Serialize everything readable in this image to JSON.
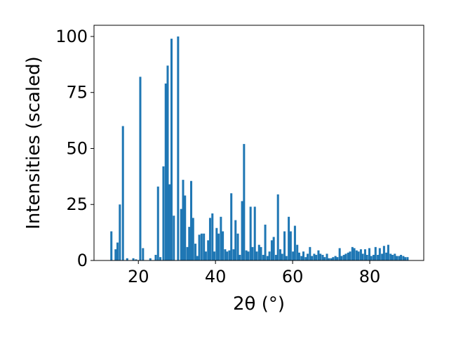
{
  "chart_data": {
    "type": "bar",
    "title": "",
    "xlabel": "2θ (°)",
    "ylabel": "Intensities (scaled)",
    "xlim": [
      8.5,
      94.0
    ],
    "ylim": [
      0,
      105
    ],
    "xticks": [
      20,
      40,
      60,
      80
    ],
    "yticks": [
      0,
      25,
      50,
      75,
      100
    ],
    "grid": false,
    "bar_width": 0.55,
    "color": "#1f77b4",
    "series": [
      {
        "x": [
          13.0,
          14.1,
          14.6,
          15.2,
          16.0,
          17.1,
          18.7,
          19.4,
          20.5,
          21.2,
          23.1,
          24.5,
          25.1,
          25.7,
          26.5,
          27.1,
          27.6,
          28.1,
          28.6,
          29.2,
          30.3,
          31.1,
          31.6,
          32.1,
          32.7,
          33.2,
          33.7,
          34.2,
          34.8,
          35.3,
          35.8,
          36.4,
          37.0,
          37.5,
          38.1,
          38.6,
          39.2,
          39.7,
          40.3,
          40.8,
          41.4,
          41.9,
          42.5,
          43.0,
          43.6,
          44.1,
          44.7,
          45.2,
          45.8,
          46.3,
          46.9,
          47.4,
          48.0,
          48.5,
          49.1,
          49.6,
          50.2,
          50.7,
          51.3,
          51.8,
          52.4,
          52.9,
          53.5,
          54.0,
          54.6,
          55.1,
          55.7,
          56.2,
          56.8,
          57.3,
          57.9,
          58.4,
          59.0,
          59.5,
          60.1,
          60.6,
          61.2,
          61.7,
          62.3,
          62.8,
          63.4,
          63.9,
          64.5,
          65.0,
          65.6,
          66.1,
          66.7,
          67.2,
          67.8,
          68.3,
          68.9,
          69.4,
          70.0,
          70.5,
          71.1,
          71.6,
          72.2,
          72.7,
          73.3,
          73.8,
          74.4,
          74.9,
          75.5,
          76.0,
          76.6,
          77.1,
          77.7,
          78.2,
          78.8,
          79.3,
          79.9,
          80.4,
          81.0,
          81.5,
          82.1,
          82.6,
          83.2,
          83.7,
          84.3,
          84.8,
          85.4,
          85.9,
          86.5,
          87.0,
          87.6,
          88.1,
          88.7,
          89.2,
          89.8
        ],
        "values": [
          13,
          5,
          8,
          25,
          60,
          1,
          1,
          0.5,
          82,
          5.5,
          1,
          2.5,
          33,
          1.5,
          42,
          79,
          87,
          34,
          99,
          20,
          100,
          23,
          36,
          29,
          6,
          15,
          35.5,
          19,
          7.5,
          2,
          11.5,
          12,
          12,
          4,
          9,
          19,
          21,
          4,
          14.5,
          12,
          19.5,
          13,
          5,
          4,
          4.5,
          30,
          5,
          18,
          12,
          2.5,
          26.5,
          52,
          4.5,
          4,
          24,
          6,
          24,
          4,
          7,
          6,
          2.5,
          16,
          2,
          4,
          9,
          10.5,
          2.5,
          29.5,
          5,
          3,
          13,
          2,
          19.5,
          13,
          4,
          15.5,
          7,
          3.5,
          2,
          4,
          1.5,
          3,
          6,
          2,
          3,
          2.5,
          4.5,
          3,
          2.5,
          1.5,
          3,
          1,
          1,
          1.5,
          2,
          1.5,
          5.5,
          2,
          2.5,
          3,
          3.5,
          4,
          6,
          5.5,
          4.5,
          4,
          5,
          3,
          5,
          2.5,
          5.5,
          2,
          2.5,
          6,
          2.5,
          5.5,
          3,
          6.5,
          3.5,
          7,
          3,
          2.5,
          3,
          2,
          2,
          2.5,
          2,
          1.5,
          1.5
        ]
      }
    ]
  }
}
